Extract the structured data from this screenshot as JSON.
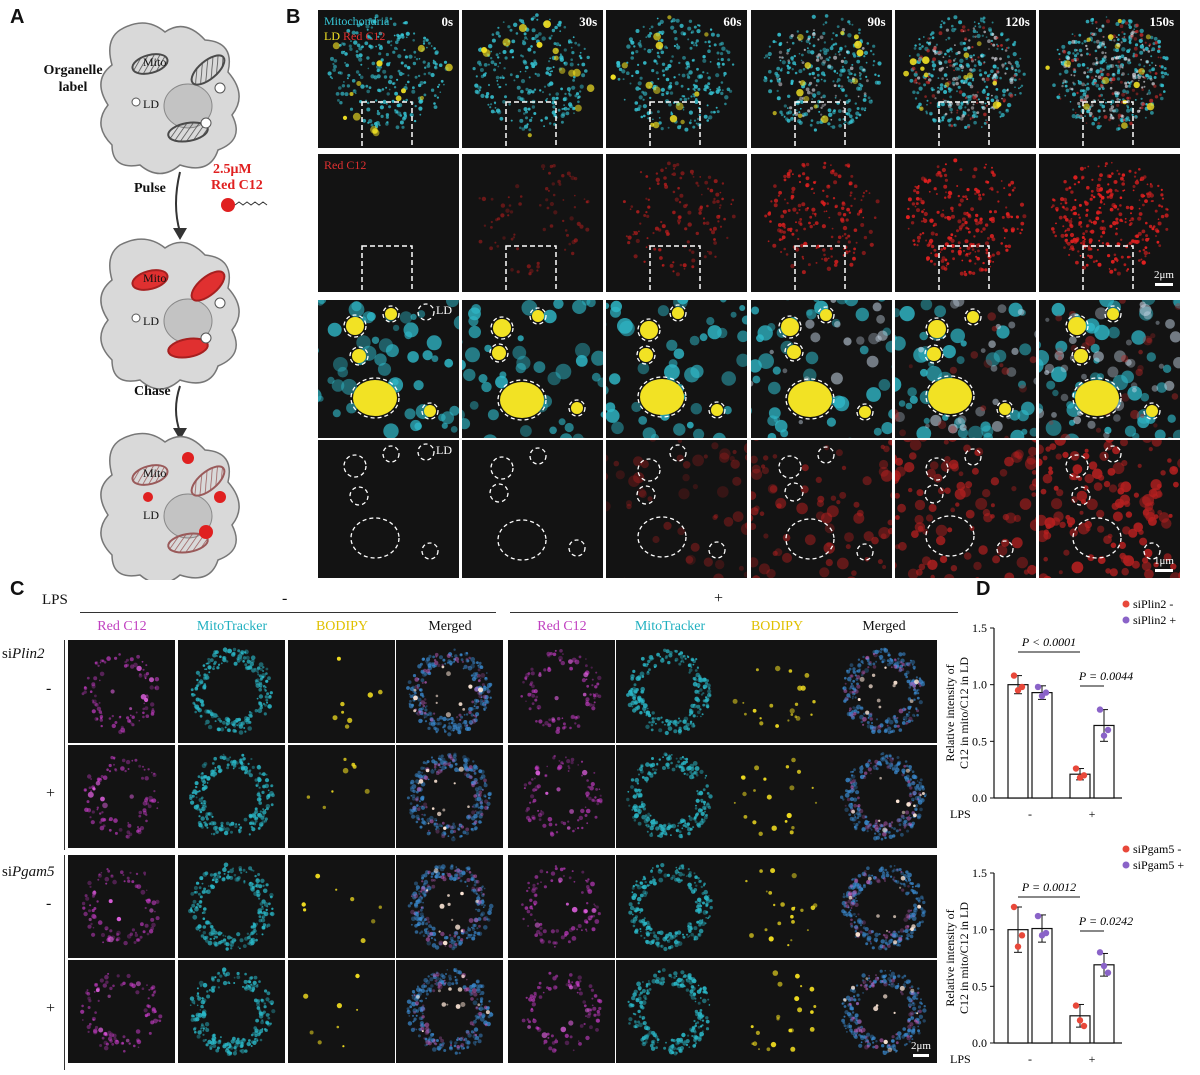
{
  "panels": {
    "a": "A",
    "b": "B",
    "c": "C",
    "d": "D"
  },
  "schematic": {
    "organelle_label": "Organelle\nlabel",
    "mito": "Mito",
    "ld": "LD",
    "concentration": "2.5μM",
    "dye": "Red C12",
    "pulse": "Pulse",
    "chase": "Chase"
  },
  "timelapse": {
    "timepoints": [
      "0s",
      "30s",
      "60s",
      "90s",
      "120s",
      "150s"
    ],
    "row1_label_a": "Mitochondria",
    "row1_label_b": "LD",
    "row1_label_c": "Red C12",
    "row2_label": "Red C12",
    "zoom_ld_label": "LD",
    "scale_top": "2μm",
    "scale_bottom": "1μm"
  },
  "grid": {
    "lps_label": "LPS",
    "lps_minus": "-",
    "lps_plus": "+",
    "columns": [
      "Red C12",
      "MitoTracker",
      "BODIPY",
      "Merged",
      "Red C12",
      "MitoTracker",
      "BODIPY",
      "Merged"
    ],
    "column_colors": [
      "#c040c0",
      "#20b0c0",
      "#e0c000",
      "#111111"
    ],
    "group1": "siPlin2",
    "group2": "siPgam5",
    "row_signs": [
      "-",
      "+",
      "-",
      "+"
    ],
    "scale": "2μm"
  },
  "chart_data": [
    {
      "type": "bar",
      "ylabel": "Relative intensity of\nC12 in mito/C12 in LD",
      "ylim": [
        0,
        1.5
      ],
      "yticks": [
        "0.0",
        "0.5",
        "1.0",
        "1.5"
      ],
      "x_label": "LPS",
      "x_groups": [
        "-",
        "+"
      ],
      "categories": [
        "siPlin2 - / LPS -",
        "siPlin2 + / LPS -",
        "siPlin2 - / LPS +",
        "siPlin2 + / LPS +"
      ],
      "values": [
        1.0,
        0.93,
        0.21,
        0.64
      ],
      "errors": [
        0.08,
        0.06,
        0.05,
        0.14
      ],
      "points": [
        [
          1.08,
          0.95,
          0.98
        ],
        [
          0.98,
          0.9,
          0.93
        ],
        [
          0.26,
          0.18,
          0.2
        ],
        [
          0.78,
          0.55,
          0.6
        ]
      ],
      "point_colors": [
        "#e8483a",
        "#8a63c8",
        "#e8483a",
        "#8a63c8"
      ],
      "legend": [
        {
          "name": "siPlin2 -",
          "color": "#e8483a"
        },
        {
          "name": "siPlin2 +",
          "color": "#8a63c8"
        }
      ],
      "stats": [
        {
          "text": "P < 0.0001"
        },
        {
          "text": "P = 0.0044"
        }
      ]
    },
    {
      "type": "bar",
      "ylabel": "Relative intensity of\nC12 in mito/C12 in LD",
      "ylim": [
        0,
        1.5
      ],
      "yticks": [
        "0.0",
        "0.5",
        "1.0",
        "1.5"
      ],
      "x_label": "LPS",
      "x_groups": [
        "-",
        "+"
      ],
      "categories": [
        "siPgam5 - / LPS -",
        "siPgam5 + / LPS -",
        "siPgam5 - / LPS +",
        "siPgam5 + / LPS +"
      ],
      "values": [
        1.0,
        1.01,
        0.24,
        0.69
      ],
      "errors": [
        0.2,
        0.12,
        0.1,
        0.1
      ],
      "points": [
        [
          1.2,
          0.85,
          0.95
        ],
        [
          1.12,
          0.95,
          0.97
        ],
        [
          0.33,
          0.2,
          0.15
        ],
        [
          0.8,
          0.68,
          0.62
        ]
      ],
      "point_colors": [
        "#e8483a",
        "#8a63c8",
        "#e8483a",
        "#8a63c8"
      ],
      "legend": [
        {
          "name": "siPgam5 -",
          "color": "#e8483a"
        },
        {
          "name": "siPgam5 +",
          "color": "#8a63c8"
        }
      ],
      "stats": [
        {
          "text": "P = 0.0012"
        },
        {
          "text": "P = 0.0242"
        }
      ]
    }
  ]
}
